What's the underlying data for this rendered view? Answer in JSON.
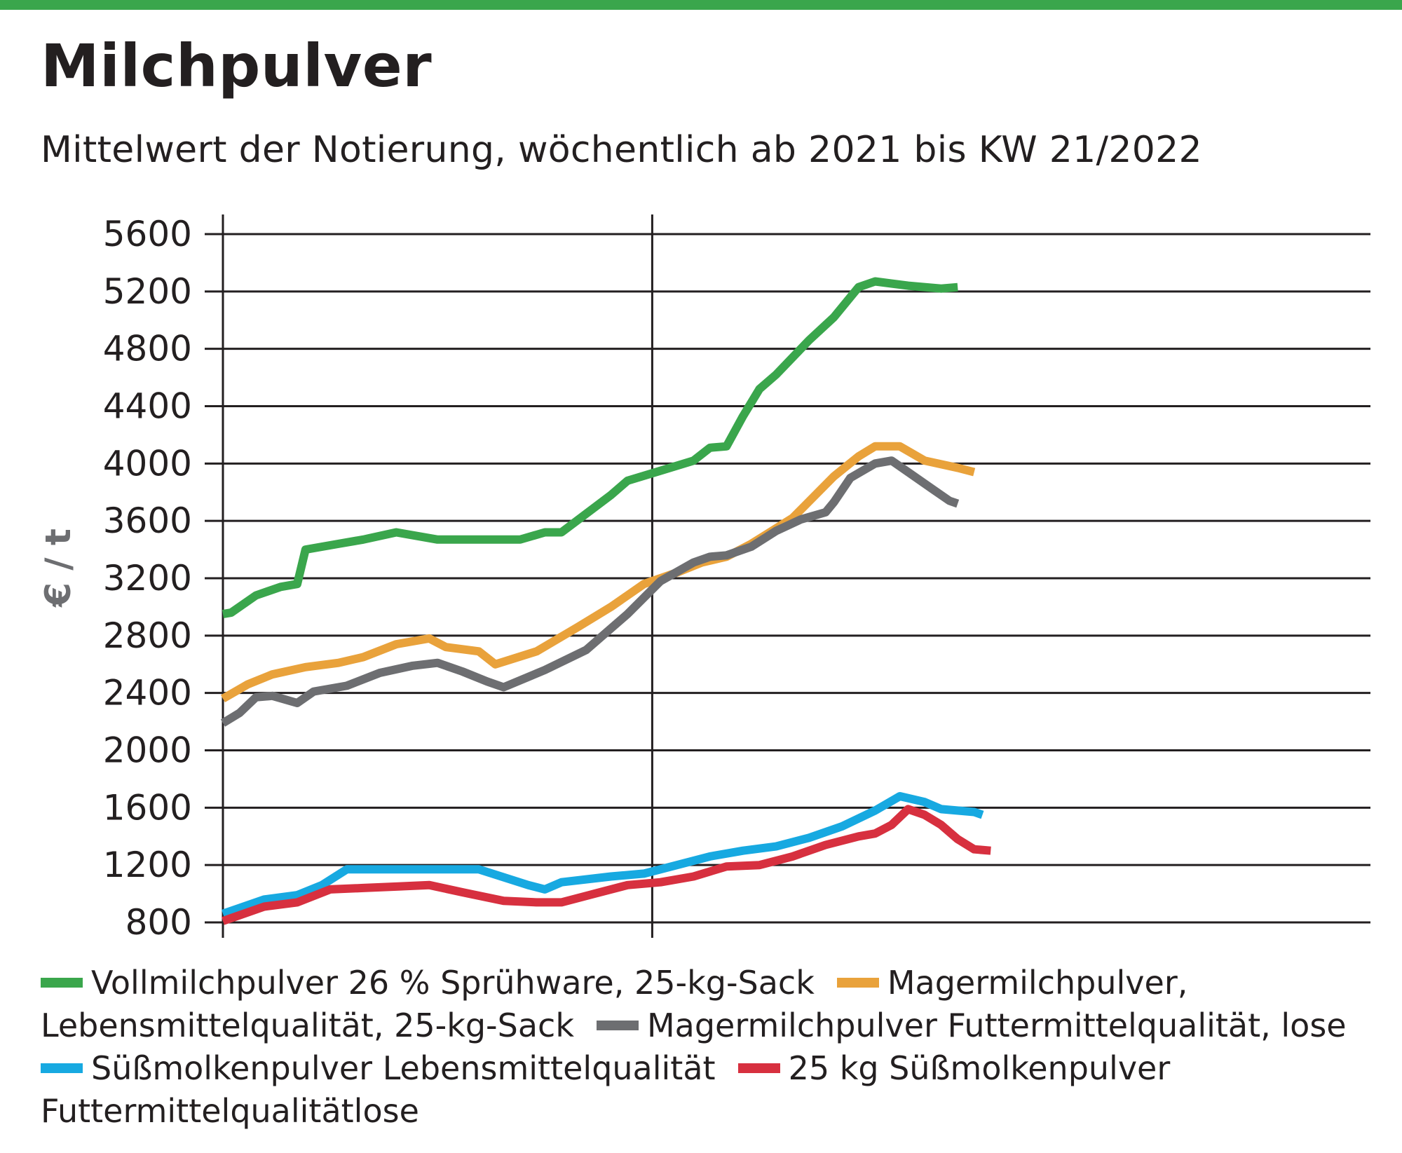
{
  "title": "Milchpulver",
  "subtitle": "Mittelwert der Notierung, wöchentlich ab 2021 bis KW 21/2022",
  "chart_data": {
    "type": "line",
    "ylabel": "€ / t",
    "xlabel": "",
    "ylim": [
      800,
      5600
    ],
    "yticks": [
      "5600",
      "5200",
      "4800",
      "4400",
      "4000",
      "3600",
      "3200",
      "2800",
      "2400",
      "2000",
      "1600",
      "1200",
      "800"
    ],
    "grid": true,
    "x_unit": "week",
    "year_boundary_week": 53,
    "series": [
      {
        "name": "Vollmilchpulver 26 % Sprühware, 25-kg-Sack",
        "color": "#3aa64c",
        "points": [
          [
            1,
            2950
          ],
          [
            2,
            2960
          ],
          [
            5,
            3080
          ],
          [
            8,
            3140
          ],
          [
            10,
            3160
          ],
          [
            11,
            3400
          ],
          [
            15,
            3440
          ],
          [
            18,
            3470
          ],
          [
            22,
            3520
          ],
          [
            27,
            3470
          ],
          [
            32,
            3470
          ],
          [
            37,
            3470
          ],
          [
            40,
            3520
          ],
          [
            42,
            3520
          ],
          [
            45,
            3650
          ],
          [
            48,
            3780
          ],
          [
            50,
            3880
          ],
          [
            54,
            3950
          ],
          [
            58,
            4020
          ],
          [
            60,
            4110
          ],
          [
            62,
            4120
          ],
          [
            64,
            4330
          ],
          [
            66,
            4520
          ],
          [
            68,
            4620
          ],
          [
            72,
            4860
          ],
          [
            75,
            5020
          ],
          [
            78,
            5230
          ],
          [
            80,
            5270
          ],
          [
            84,
            5240
          ],
          [
            88,
            5220
          ],
          [
            90,
            5230
          ]
        ]
      },
      {
        "name": "Magermilchpulver, Lebensmittelqualität, 25-kg-Sack",
        "color": "#e9a23b",
        "points": [
          [
            1,
            2360
          ],
          [
            4,
            2460
          ],
          [
            7,
            2530
          ],
          [
            11,
            2580
          ],
          [
            15,
            2610
          ],
          [
            18,
            2650
          ],
          [
            22,
            2740
          ],
          [
            26,
            2780
          ],
          [
            28,
            2720
          ],
          [
            32,
            2690
          ],
          [
            34,
            2600
          ],
          [
            39,
            2690
          ],
          [
            44,
            2860
          ],
          [
            48,
            3000
          ],
          [
            52,
            3160
          ],
          [
            56,
            3240
          ],
          [
            59,
            3310
          ],
          [
            62,
            3350
          ],
          [
            65,
            3440
          ],
          [
            70,
            3620
          ],
          [
            75,
            3910
          ],
          [
            78,
            4050
          ],
          [
            80,
            4120
          ],
          [
            83,
            4120
          ],
          [
            86,
            4020
          ],
          [
            90,
            3970
          ],
          [
            92,
            3940
          ]
        ]
      },
      {
        "name": "Magermilchpulver Futtermittelqualität, lose",
        "color": "#6d6e71",
        "points": [
          [
            1,
            2190
          ],
          [
            3,
            2260
          ],
          [
            5,
            2370
          ],
          [
            7,
            2380
          ],
          [
            10,
            2330
          ],
          [
            12,
            2410
          ],
          [
            16,
            2450
          ],
          [
            20,
            2540
          ],
          [
            24,
            2590
          ],
          [
            27,
            2610
          ],
          [
            30,
            2550
          ],
          [
            33,
            2480
          ],
          [
            35,
            2440
          ],
          [
            40,
            2560
          ],
          [
            45,
            2700
          ],
          [
            50,
            2950
          ],
          [
            54,
            3180
          ],
          [
            58,
            3310
          ],
          [
            60,
            3350
          ],
          [
            62,
            3360
          ],
          [
            65,
            3420
          ],
          [
            68,
            3530
          ],
          [
            71,
            3610
          ],
          [
            74,
            3660
          ],
          [
            75,
            3730
          ],
          [
            77,
            3900
          ],
          [
            80,
            4000
          ],
          [
            82,
            4020
          ],
          [
            84,
            3940
          ],
          [
            87,
            3820
          ],
          [
            89,
            3740
          ],
          [
            90,
            3720
          ]
        ]
      },
      {
        "name": "Süßmolkenpulver Lebensmittelqualität",
        "color": "#17a9e1",
        "points": [
          [
            1,
            860
          ],
          [
            3,
            900
          ],
          [
            6,
            960
          ],
          [
            10,
            990
          ],
          [
            13,
            1060
          ],
          [
            16,
            1170
          ],
          [
            22,
            1170
          ],
          [
            28,
            1170
          ],
          [
            32,
            1170
          ],
          [
            38,
            1060
          ],
          [
            40,
            1030
          ],
          [
            42,
            1080
          ],
          [
            48,
            1120
          ],
          [
            52,
            1140
          ],
          [
            56,
            1200
          ],
          [
            60,
            1260
          ],
          [
            64,
            1300
          ],
          [
            68,
            1330
          ],
          [
            72,
            1390
          ],
          [
            76,
            1470
          ],
          [
            80,
            1580
          ],
          [
            83,
            1680
          ],
          [
            86,
            1640
          ],
          [
            88,
            1590
          ],
          [
            92,
            1570
          ],
          [
            93,
            1550
          ]
        ]
      },
      {
        "name": "25 kg Süßmolkenpulver Futtermittelqualitätlose",
        "color": "#d7303f",
        "points": [
          [
            1,
            810
          ],
          [
            3,
            850
          ],
          [
            6,
            910
          ],
          [
            10,
            940
          ],
          [
            14,
            1030
          ],
          [
            18,
            1040
          ],
          [
            22,
            1050
          ],
          [
            26,
            1060
          ],
          [
            30,
            1010
          ],
          [
            35,
            950
          ],
          [
            39,
            940
          ],
          [
            42,
            940
          ],
          [
            46,
            1000
          ],
          [
            50,
            1060
          ],
          [
            54,
            1080
          ],
          [
            58,
            1120
          ],
          [
            62,
            1190
          ],
          [
            66,
            1200
          ],
          [
            70,
            1260
          ],
          [
            74,
            1340
          ],
          [
            78,
            1400
          ],
          [
            80,
            1420
          ],
          [
            82,
            1480
          ],
          [
            84,
            1590
          ],
          [
            86,
            1550
          ],
          [
            88,
            1480
          ],
          [
            90,
            1380
          ],
          [
            92,
            1310
          ],
          [
            94,
            1300
          ]
        ]
      }
    ]
  },
  "legend": [
    {
      "label": "Vollmilchpulver 26 % Sprühware, 25-kg-Sack",
      "color": "#3aa64c"
    },
    {
      "label": "Magermilchpulver, Lebensmittelqualität, 25-kg-Sack",
      "color": "#e9a23b"
    },
    {
      "label": "Magermilchpulver Futtermittelqualität, lose",
      "color": "#6d6e71"
    },
    {
      "label": "Süßmolkenpulver Lebensmittelqualität",
      "color": "#17a9e1"
    },
    {
      "label": "25 kg Süßmolkenpulver Futtermittelqualitätlose",
      "color": "#d7303f"
    }
  ]
}
